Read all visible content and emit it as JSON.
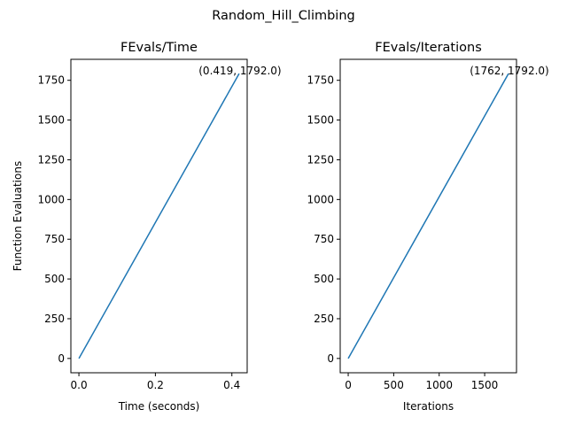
{
  "figure": {
    "suptitle": "Random_Hill_Climbing"
  },
  "colors": {
    "line": "#1f77b4",
    "axes": "#000000",
    "background": "#ffffff"
  },
  "chart_data": [
    {
      "type": "line",
      "title": "FEvals/Time",
      "xlabel": "Time (seconds)",
      "ylabel": "Function Evaluations",
      "xlim": [
        -0.021,
        0.44
      ],
      "ylim": [
        -90,
        1882
      ],
      "xticks": [
        0.0,
        0.2,
        0.4
      ],
      "xtick_labels": [
        "0.0",
        "0.2",
        "0.4"
      ],
      "yticks": [
        0,
        250,
        500,
        750,
        1000,
        1250,
        1500,
        1750
      ],
      "ytick_labels": [
        "0",
        "250",
        "500",
        "750",
        "1000",
        "1250",
        "1500",
        "1750"
      ],
      "grid": false,
      "series": [
        {
          "x": [
            0.0,
            0.419
          ],
          "y": [
            0,
            1792
          ]
        }
      ],
      "annotation": {
        "text": "(0.419, 1792.0)",
        "x": 0.419,
        "y": 1792
      }
    },
    {
      "type": "line",
      "title": "FEvals/Iterations",
      "xlabel": "Iterations",
      "ylabel": "",
      "xlim": [
        -88,
        1850
      ],
      "ylim": [
        -90,
        1882
      ],
      "xticks": [
        0,
        500,
        1000,
        1500
      ],
      "xtick_labels": [
        "0",
        "500",
        "1000",
        "1500"
      ],
      "yticks": [
        0,
        250,
        500,
        750,
        1000,
        1250,
        1500,
        1750
      ],
      "ytick_labels": [
        "0",
        "250",
        "500",
        "750",
        "1000",
        "1250",
        "1500",
        "1750"
      ],
      "grid": false,
      "series": [
        {
          "x": [
            0,
            1762
          ],
          "y": [
            0,
            1792
          ]
        }
      ],
      "annotation": {
        "text": "(1762, 1792.0)",
        "x": 1762,
        "y": 1792
      }
    }
  ]
}
